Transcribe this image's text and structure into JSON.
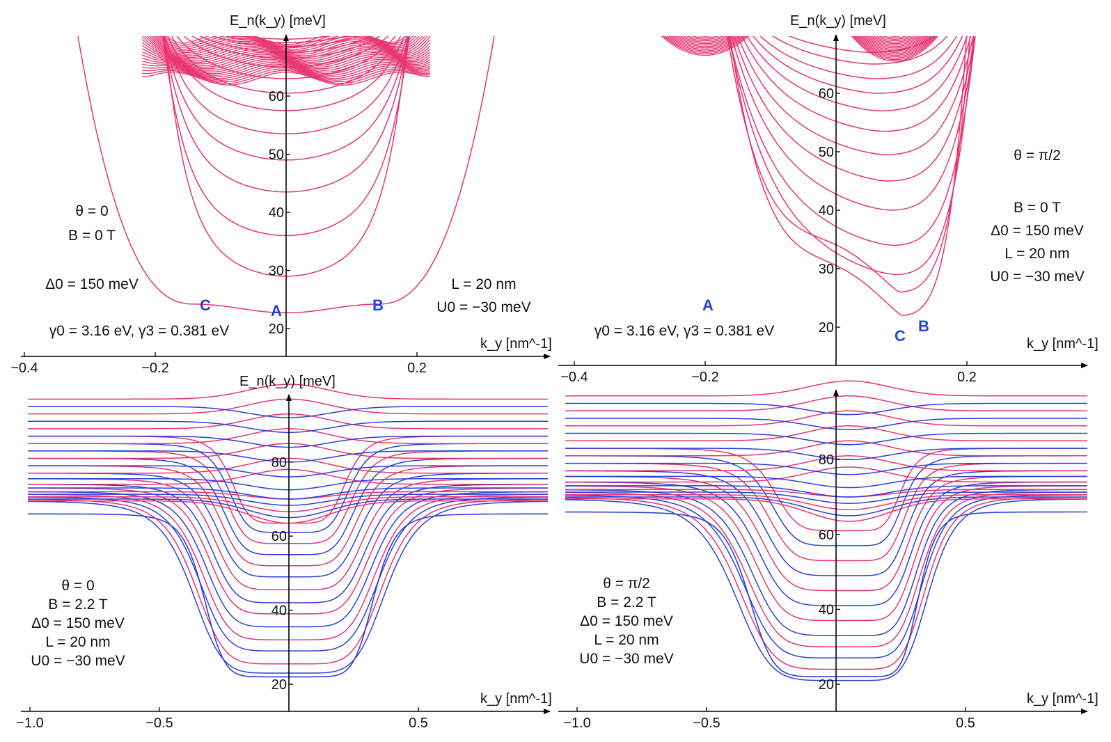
{
  "figure": {
    "panels": [
      {
        "id": "top-left",
        "y_axis_label": "E_n(k_y) [meV]",
        "x_axis_label": "k_y [nm^-1]",
        "annotations": [
          "θ = 0",
          "B = 0 T",
          "Δ0 = 150 meV",
          "L = 20 nm",
          "U0 = −30 meV",
          "γ0 = 3.16 eV, γ3 = 0.381 eV"
        ],
        "point_labels": [
          "A",
          "B",
          "C"
        ]
      },
      {
        "id": "top-right",
        "y_axis_label": "E_n(k_y) [meV]",
        "x_axis_label": "k_y [nm^-1]",
        "annotations": [
          "θ = π/2",
          "B = 0 T",
          "Δ0 = 150 meV",
          "L = 20 nm",
          "U0 = −30 meV",
          "γ0 = 3.16 eV, γ3 = 0.381 eV"
        ],
        "point_labels": [
          "A",
          "B",
          "C"
        ]
      },
      {
        "id": "bottom-left",
        "y_axis_label": "E_n(k_y) [meV]",
        "x_axis_label": "k_y [nm^-1]",
        "annotations": [
          "θ = 0",
          "B = 2.2 T",
          "Δ0 = 150 meV",
          "L = 20 nm",
          "U0 = −30 meV"
        ]
      },
      {
        "id": "bottom-right",
        "y_axis_label": "E_n(k_y) [meV]",
        "x_axis_label": "k_y [nm^-1]",
        "annotations": [
          "θ = π/2",
          "B = 2.2 T",
          "Δ0 = 150 meV",
          "L = 20 nm",
          "U0 = −30 meV"
        ]
      }
    ]
  },
  "chart_data": [
    {
      "type": "line",
      "panel": "top-left",
      "xlabel": "k_y [nm^-1]",
      "ylabel": "E_n(k_y) [meV]",
      "xlim": [
        -0.4,
        0.4
      ],
      "ylim": [
        17,
        70
      ],
      "x_ticks": [
        -0.4,
        -0.2,
        0.2
      ],
      "y_ticks": [
        20,
        30,
        40,
        50,
        60
      ],
      "colors": {
        "bands": "#e8336f"
      },
      "band_minima_at_ky0": [
        23,
        29,
        36,
        43.5,
        49,
        53.5,
        57.5,
        60.5,
        63,
        65,
        66.5,
        67.5,
        68.5,
        69.2,
        69.8
      ],
      "labeled_points": [
        {
          "label": "A",
          "x": -0.01,
          "y": 22.7
        },
        {
          "label": "B",
          "x": 0.14,
          "y": 24.2
        },
        {
          "label": "C",
          "x": -0.12,
          "y": 24.2
        }
      ]
    },
    {
      "type": "line",
      "panel": "top-right",
      "xlabel": "k_y [nm^-1]",
      "ylabel": "E_n(k_y) [meV]",
      "xlim": [
        -0.4,
        0.4
      ],
      "ylim": [
        17,
        70
      ],
      "x_ticks": [
        -0.4,
        -0.2,
        0.2
      ],
      "y_ticks": [
        20,
        30,
        40,
        50,
        60
      ],
      "colors": {
        "bands": "#e8336f"
      },
      "band_minima": [
        22,
        26,
        29,
        34,
        40,
        45,
        49.5,
        53.5,
        57,
        60,
        62.5,
        65,
        67
      ],
      "labeled_points": [
        {
          "label": "A",
          "x": -0.2,
          "y": 24.5
        },
        {
          "label": "B",
          "x": 0.13,
          "y": 21
        },
        {
          "label": "C",
          "x": 0.1,
          "y": 20
        }
      ]
    },
    {
      "type": "line",
      "panel": "bottom-left",
      "xlabel": "k_y [nm^-1]",
      "ylabel": "E_n(k_y) [meV]",
      "xlim": [
        -1.0,
        1.0
      ],
      "ylim": [
        17,
        97
      ],
      "x_ticks": [
        -1.0,
        -0.5,
        0.5
      ],
      "y_ticks": [
        20,
        40,
        60,
        80
      ],
      "colors": {
        "series_a": "#e8336f",
        "series_b": "#2c3fd8"
      },
      "flat_band_level_lowest": 66,
      "band_minima_at_ky0": [
        23,
        25.5,
        29,
        32,
        35.5,
        39,
        42,
        45.5,
        49,
        52,
        55,
        58,
        61,
        63.5
      ]
    },
    {
      "type": "line",
      "panel": "bottom-right",
      "xlabel": "k_y [nm^-1]",
      "ylabel": "E_n(k_y) [meV]",
      "xlim": [
        -1.0,
        1.0
      ],
      "ylim": [
        17,
        97
      ],
      "x_ticks": [
        -1.0,
        -0.5,
        0.5
      ],
      "y_ticks": [
        20,
        40,
        60,
        80
      ],
      "colors": {
        "series_a": "#e8336f",
        "series_b": "#2c3fd8"
      },
      "flat_band_level_lowest": 66,
      "band_minima": [
        21,
        24,
        27,
        30,
        33,
        37,
        41,
        45,
        49,
        53,
        57,
        61
      ]
    }
  ]
}
